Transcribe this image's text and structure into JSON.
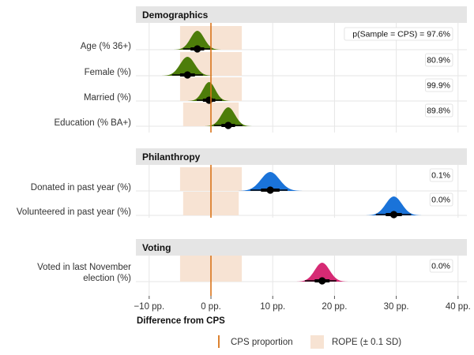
{
  "chart_data": {
    "type": "halfeye-interval",
    "xlabel": "Difference from CPS",
    "xlim": [
      -11,
      41
    ],
    "x_ticks": [
      -10,
      0,
      10,
      20,
      30,
      40
    ],
    "x_tick_labels": [
      "−10 pp.",
      "0 pp.",
      "10 pp.",
      "20 pp.",
      "30 pp.",
      "40 pp."
    ],
    "reference_line": 0,
    "colors": {
      "Demographics": "#4d7d0a",
      "Philanthropy": "#1a73d9",
      "Voting": "#d62a74",
      "rope": "#f7e3d3",
      "cps": "#d9741a",
      "strip": "#e5e5e5"
    },
    "panels": [
      {
        "name": "Demographics",
        "rows": [
          {
            "label": "Age (% 36+)",
            "median": -2.2,
            "sd": 1.1,
            "inner": [
              -3.3,
              -1.1
            ],
            "outer": [
              -4.5,
              0.1
            ],
            "rope": [
              -5,
              5
            ],
            "pd": "p(Sample = CPS) = 97.6%"
          },
          {
            "label": "Female (%)",
            "median": -3.8,
            "sd": 1.2,
            "inner": [
              -5.0,
              -2.6
            ],
            "outer": [
              -6.3,
              -1.3
            ],
            "rope": [
              -5,
              5
            ],
            "pd": "80.9%"
          },
          {
            "label": "Married (%)",
            "median": -0.3,
            "sd": 1.0,
            "inner": [
              -1.3,
              0.7
            ],
            "outer": [
              -2.3,
              1.8
            ],
            "rope": [
              -5,
              5
            ],
            "pd": "99.9%"
          },
          {
            "label": "Education (% BA+)",
            "median": 2.8,
            "sd": 1.1,
            "inner": [
              1.7,
              3.9
            ],
            "outer": [
              0.5,
              5.1
            ],
            "rope": [
              -4.5,
              4.5
            ],
            "pd": "89.8%"
          }
        ]
      },
      {
        "name": "Philanthropy",
        "rows": [
          {
            "label": "Donated in past year (%)",
            "median": 9.6,
            "sd": 1.5,
            "inner": [
              8.1,
              11.1
            ],
            "outer": [
              6.4,
              12.4
            ],
            "rope": [
              -5,
              5
            ],
            "pd": "0.1%"
          },
          {
            "label": "Volunteered in past year (%)",
            "median": 29.6,
            "sd": 1.3,
            "inner": [
              28.3,
              30.9
            ],
            "outer": [
              26.7,
              32.4
            ],
            "rope": [
              -4.5,
              4.5
            ],
            "pd": "0.0%"
          }
        ]
      },
      {
        "name": "Voting",
        "rows": [
          {
            "label": "Voted in last November election (%)",
            "label_lines": [
              "Voted in last November",
              "election (%)"
            ],
            "median": 18.0,
            "sd": 1.2,
            "inner": [
              16.8,
              19.2
            ],
            "outer": [
              15.2,
              20.3
            ],
            "rope": [
              -5,
              5
            ],
            "pd": "0.0%"
          }
        ]
      }
    ],
    "legend": [
      {
        "key": "cps",
        "label": "CPS proportion"
      },
      {
        "key": "rope",
        "label": "ROPE (± 0.1 SD)"
      }
    ]
  }
}
